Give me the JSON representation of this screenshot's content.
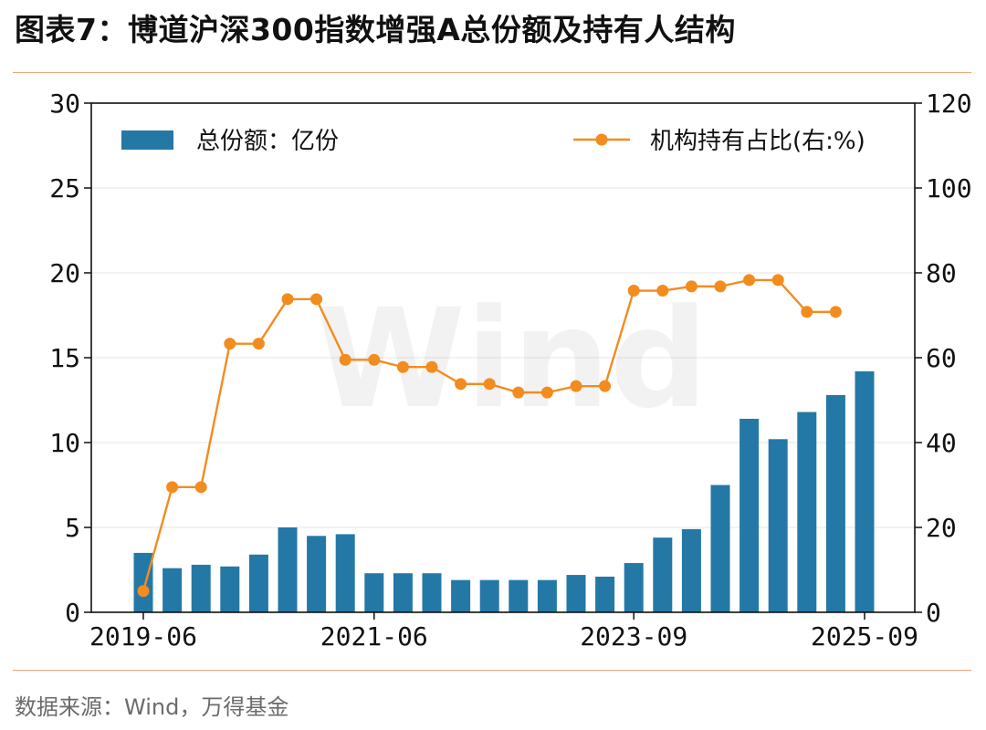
{
  "header": {
    "title": "图表7：博道沪深300指数增强A总份额及持有人结构"
  },
  "footer": {
    "source": "数据来源：Wind，万得基金"
  },
  "colors": {
    "bar": "#2478a6",
    "line": "#f28c1f",
    "rule": "#f0a57a",
    "grid": "#e6e6e6"
  },
  "chart_data": {
    "type": "bar+line",
    "watermark": "Wind",
    "x_ticks": [
      "2019-06",
      "2021-06",
      "2023-09",
      "2025-09"
    ],
    "x_tick_index": [
      0,
      8,
      17,
      25
    ],
    "left_axis": {
      "ylim": [
        0,
        30
      ],
      "ticks": [
        0,
        5,
        10,
        15,
        20,
        25,
        30
      ]
    },
    "right_axis": {
      "ylim": [
        0,
        120
      ],
      "ticks": [
        0,
        20,
        40,
        60,
        80,
        100,
        120
      ]
    },
    "legend": {
      "bar_label": "总份额：亿份",
      "line_label": "机构持有占比(右:%)",
      "placement": "top"
    },
    "grid": true,
    "series": [
      {
        "name": "总份额：亿份",
        "type": "bar",
        "axis": "left",
        "values": [
          3.5,
          2.6,
          2.8,
          2.7,
          3.4,
          5.0,
          4.5,
          4.6,
          2.3,
          2.3,
          2.3,
          1.9,
          1.9,
          1.9,
          1.9,
          2.2,
          2.1,
          2.9,
          4.4,
          4.9,
          7.5,
          11.4,
          10.2,
          11.8,
          12.8,
          14.2
        ]
      },
      {
        "name": "机构持有占比(右:%)",
        "type": "line",
        "axis": "right",
        "values": [
          5,
          29.5,
          29.5,
          63.3,
          63.3,
          73.8,
          73.8,
          59.5,
          59.5,
          57.8,
          57.8,
          53.8,
          53.8,
          51.8,
          51.8,
          53.3,
          53.3,
          75.8,
          75.8,
          76.8,
          76.8,
          78.3,
          78.3,
          70.8,
          70.8,
          null
        ]
      }
    ]
  }
}
